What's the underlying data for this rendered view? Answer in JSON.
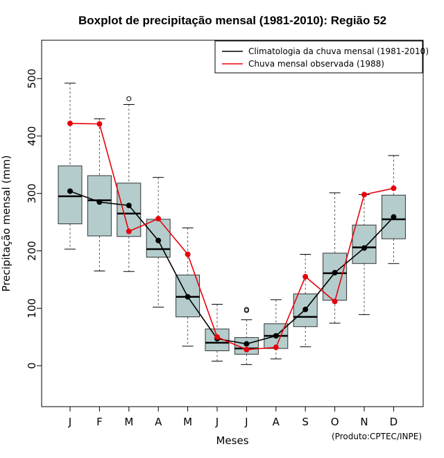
{
  "colors": {
    "box_fill": "#b4cccc",
    "climatology": "#000000",
    "observed": "#e8000b",
    "whisker": "#555555"
  },
  "credit": "(Produto:CPTEC/INPE)",
  "chart_data": {
    "type": "boxplot",
    "title": "Boxplot de precipitação mensal (1981-2010): Região 52",
    "xlabel": "Meses",
    "ylabel": "Precipitação mensal (mm)",
    "ylim": [
      -70,
      570
    ],
    "yticks": [
      0,
      100,
      200,
      300,
      400,
      500
    ],
    "categories": [
      "J",
      "F",
      "M",
      "A",
      "M",
      "J",
      "J",
      "A",
      "S",
      "O",
      "N",
      "D"
    ],
    "boxes": [
      {
        "min": 203,
        "q1": 247,
        "median": 295,
        "q3": 348,
        "max": 492,
        "outliers": []
      },
      {
        "min": 165,
        "q1": 226,
        "median": 288,
        "q3": 331,
        "max": 430,
        "outliers": []
      },
      {
        "min": 164,
        "q1": 225,
        "median": 265,
        "q3": 318,
        "max": 455,
        "outliers": [
          465
        ]
      },
      {
        "min": 102,
        "q1": 189,
        "median": 203,
        "q3": 255,
        "max": 328,
        "outliers": []
      },
      {
        "min": 34,
        "q1": 85,
        "median": 120,
        "q3": 158,
        "max": 240,
        "outliers": []
      },
      {
        "min": 8,
        "q1": 26,
        "median": 40,
        "q3": 64,
        "max": 107,
        "outliers": []
      },
      {
        "min": 2,
        "q1": 20,
        "median": 30,
        "q3": 49,
        "max": 80,
        "outliers": [
          96,
          98
        ]
      },
      {
        "min": 12,
        "q1": 30,
        "median": 52,
        "q3": 73,
        "max": 115,
        "outliers": []
      },
      {
        "min": 33,
        "q1": 68,
        "median": 85,
        "q3": 125,
        "max": 194,
        "outliers": []
      },
      {
        "min": 74,
        "q1": 114,
        "median": 161,
        "q3": 196,
        "max": 301,
        "outliers": []
      },
      {
        "min": 89,
        "q1": 178,
        "median": 206,
        "q3": 245,
        "max": 298,
        "outliers": []
      },
      {
        "min": 178,
        "q1": 221,
        "median": 255,
        "q3": 297,
        "max": 366,
        "outliers": []
      }
    ],
    "series": [
      {
        "name": "Climatologia da chuva mensal (1981-2010)",
        "values": [
          304,
          285,
          279,
          218,
          120,
          47,
          38,
          52,
          98,
          162,
          205,
          259
        ]
      },
      {
        "name": "Chuva mensal observada (1988)",
        "values": [
          422,
          421,
          234,
          256,
          194,
          50,
          28,
          32,
          155,
          112,
          298,
          309
        ]
      }
    ],
    "legend_position": "top-right"
  }
}
